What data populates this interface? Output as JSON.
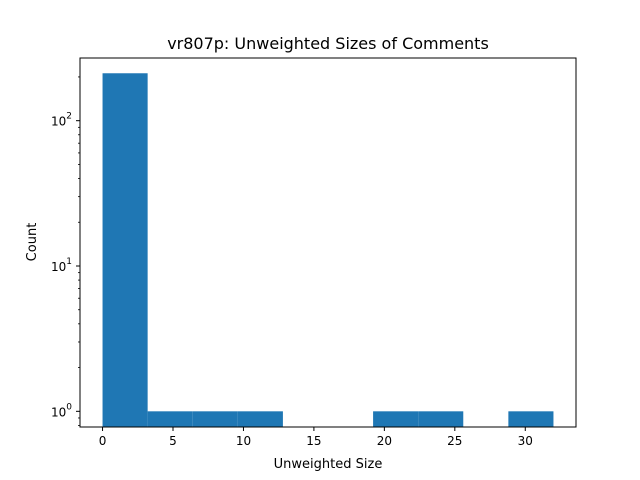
{
  "chart_data": {
    "type": "bar",
    "title": "vr807p: Unweighted Sizes of Comments",
    "xlabel": "Unweighted Size",
    "ylabel": "Count",
    "yscale": "log",
    "grid": false,
    "xlim": [
      -1.6,
      33.6
    ],
    "ylim": [
      0.78,
      270
    ],
    "bar_color": "#1f77b4",
    "bins": [
      {
        "x0": 0.0,
        "x1": 3.2,
        "count": 212
      },
      {
        "x0": 3.2,
        "x1": 6.4,
        "count": 1
      },
      {
        "x0": 6.4,
        "x1": 9.6,
        "count": 1
      },
      {
        "x0": 9.6,
        "x1": 12.8,
        "count": 1
      },
      {
        "x0": 12.8,
        "x1": 16.0,
        "count": 0
      },
      {
        "x0": 16.0,
        "x1": 19.2,
        "count": 0
      },
      {
        "x0": 19.2,
        "x1": 22.4,
        "count": 1
      },
      {
        "x0": 22.4,
        "x1": 25.6,
        "count": 1
      },
      {
        "x0": 25.6,
        "x1": 28.8,
        "count": 0
      },
      {
        "x0": 28.8,
        "x1": 32.0,
        "count": 1
      }
    ],
    "x_ticks": [
      {
        "value": 0,
        "label": "0"
      },
      {
        "value": 5,
        "label": "5"
      },
      {
        "value": 10,
        "label": "10"
      },
      {
        "value": 15,
        "label": "15"
      },
      {
        "value": 20,
        "label": "20"
      },
      {
        "value": 25,
        "label": "25"
      },
      {
        "value": 30,
        "label": "30"
      }
    ],
    "y_ticks": [
      {
        "value": 1,
        "base": "10",
        "exp": "0"
      },
      {
        "value": 10,
        "base": "10",
        "exp": "1"
      },
      {
        "value": 100,
        "base": "10",
        "exp": "2"
      }
    ]
  }
}
